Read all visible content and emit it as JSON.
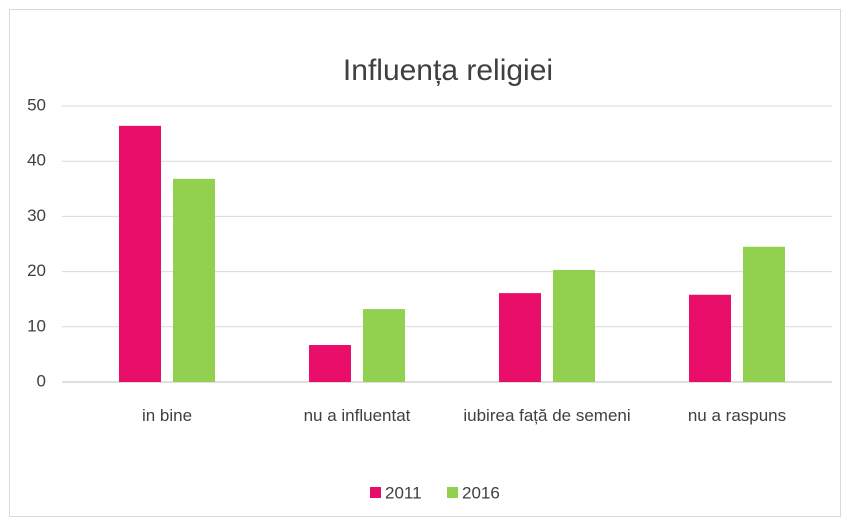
{
  "chart_data": {
    "type": "bar",
    "title": "Influența religiei",
    "categories": [
      "in bine",
      "nu a influentat",
      "iubirea față de semeni",
      "nu a raspuns"
    ],
    "series": [
      {
        "name": "2011",
        "color": "#ea0e6b",
        "values": [
          46.4,
          6.7,
          16.1,
          15.8
        ]
      },
      {
        "name": "2016",
        "color": "#92d050",
        "values": [
          36.8,
          13.2,
          20.3,
          24.5
        ]
      }
    ],
    "ylim": [
      0,
      50
    ],
    "yticks": [
      0,
      10,
      20,
      30,
      40,
      50
    ],
    "grid": true,
    "legend": "bottom"
  }
}
